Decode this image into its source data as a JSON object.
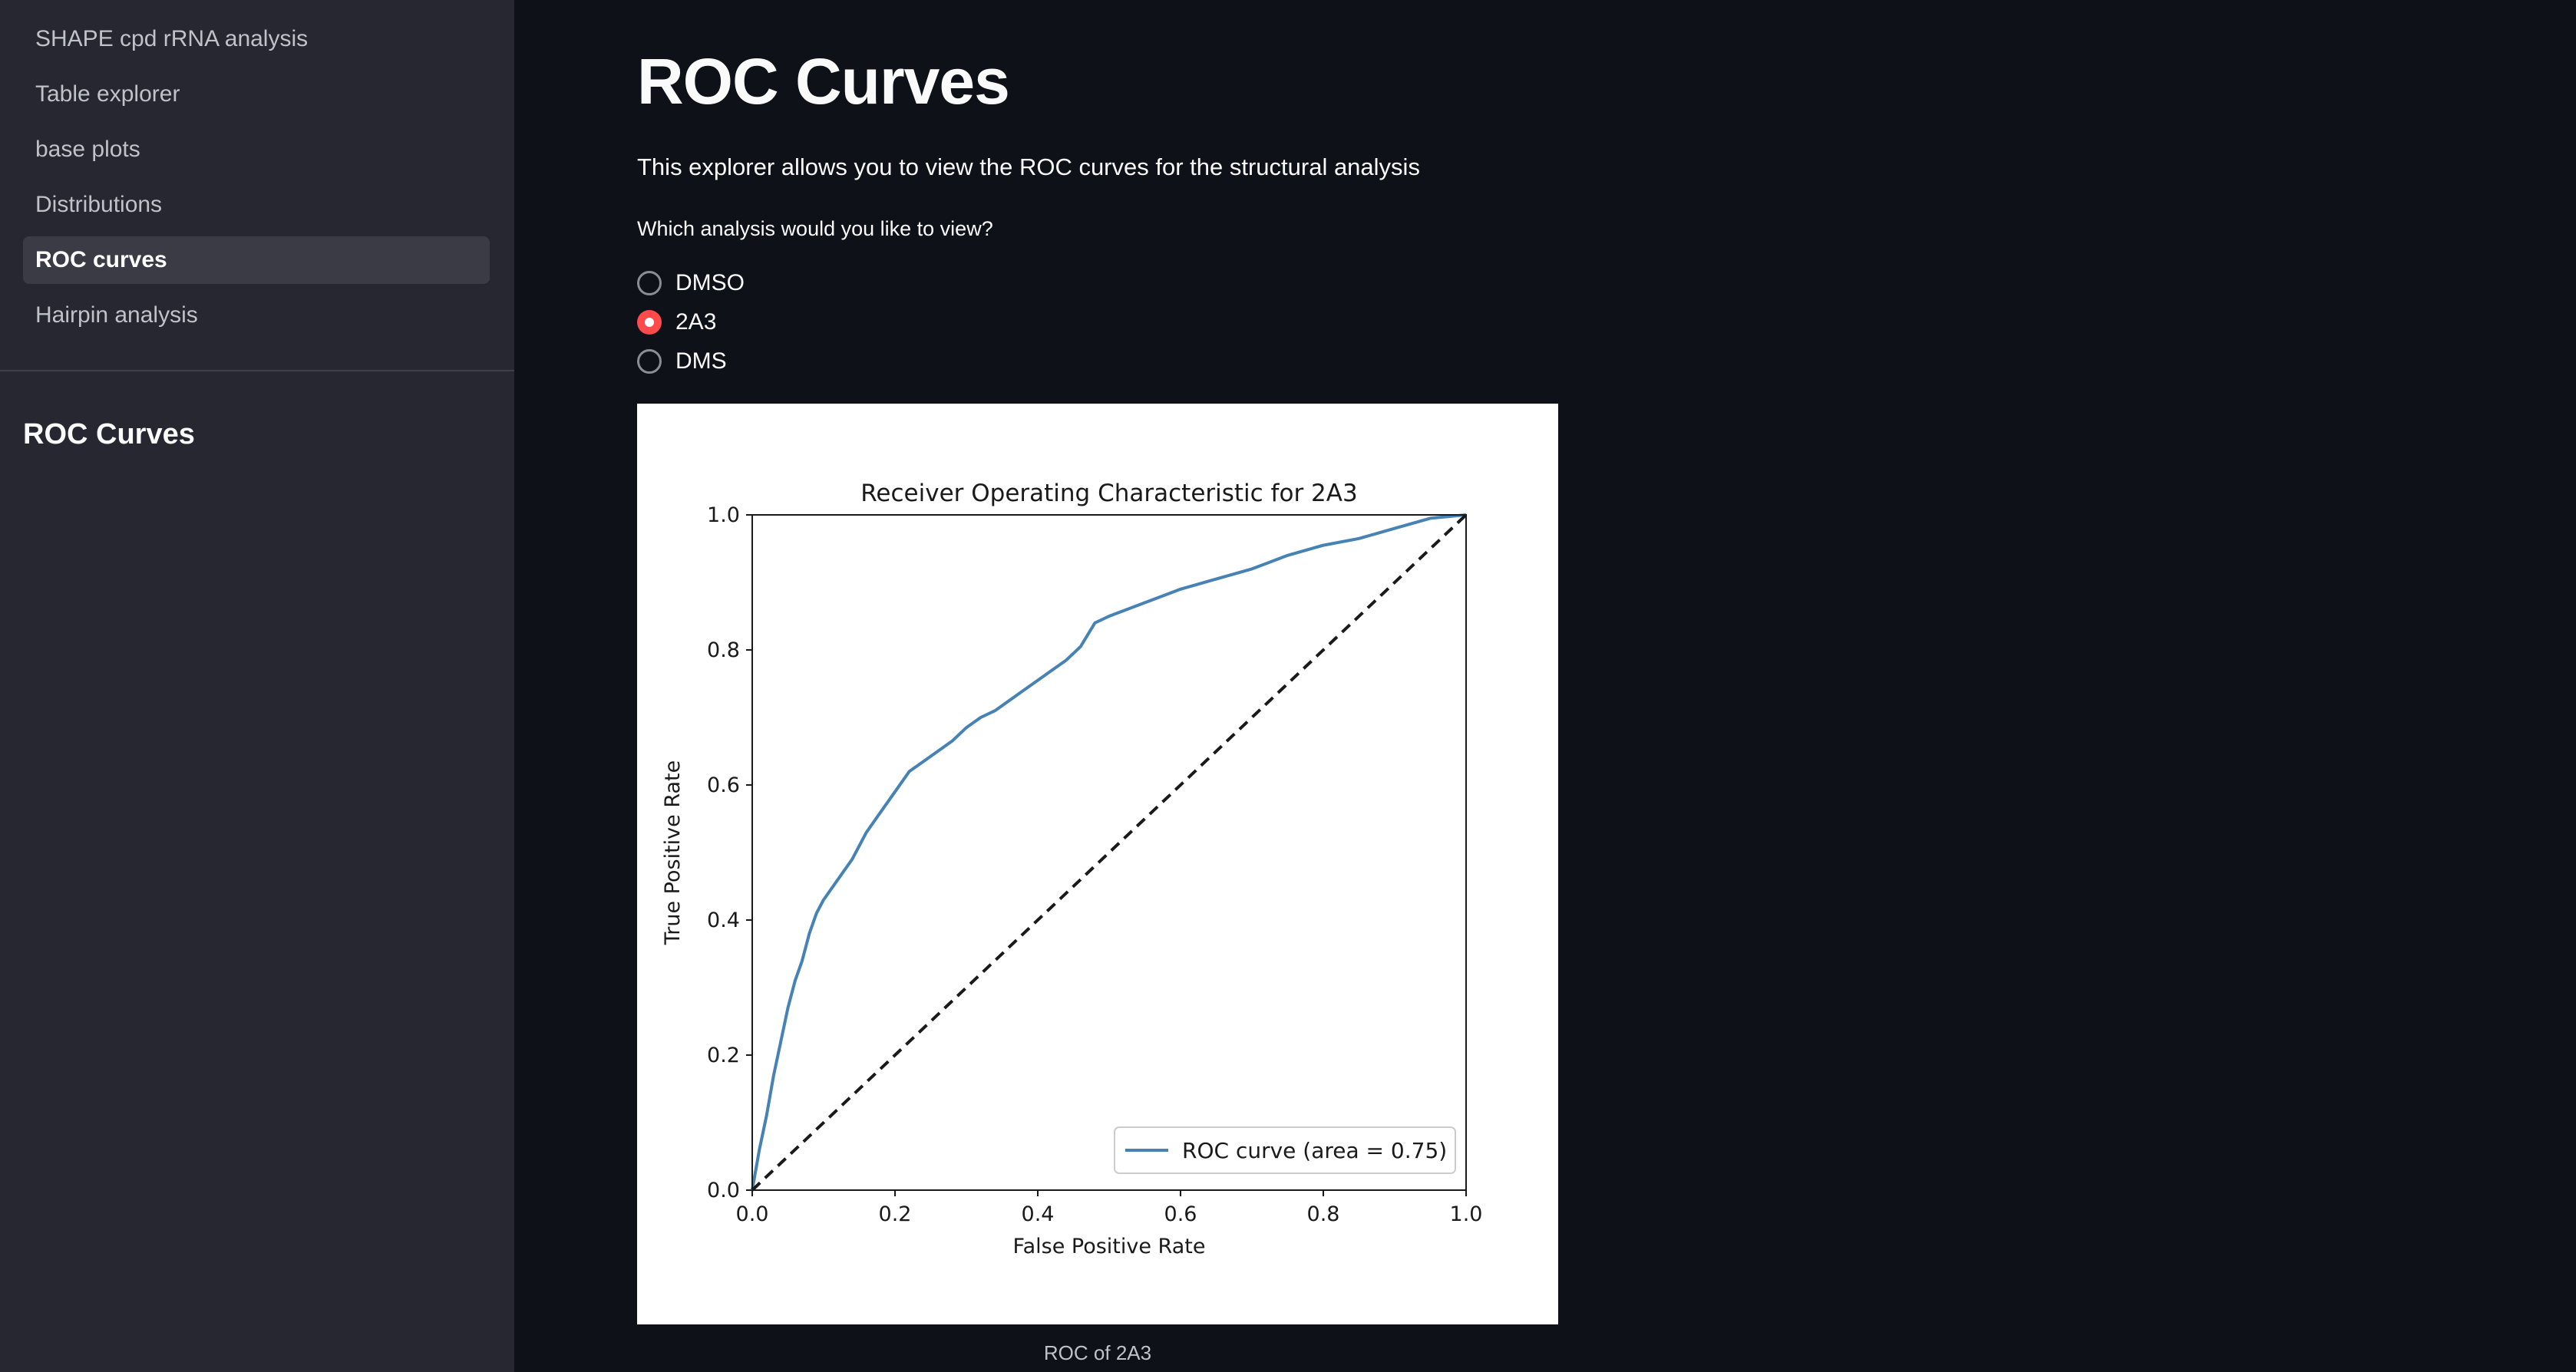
{
  "sidebar": {
    "items": [
      {
        "label": "SHAPE cpd rRNA analysis",
        "active": false
      },
      {
        "label": "Table explorer",
        "active": false
      },
      {
        "label": "base plots",
        "active": false
      },
      {
        "label": "Distributions",
        "active": false
      },
      {
        "label": "ROC curves",
        "active": true
      },
      {
        "label": "Hairpin analysis",
        "active": false
      }
    ],
    "section_heading": "ROC Curves"
  },
  "main": {
    "title": "ROC Curves",
    "intro": "This explorer allows you to view the ROC curves for the structural analysis",
    "radio": {
      "label": "Which analysis would you like to view?",
      "options": [
        "DMSO",
        "2A3",
        "DMS"
      ],
      "selected": "2A3"
    },
    "caption": "ROC of 2A3"
  },
  "colors": {
    "accent": "#ff4b4b",
    "curve": "#4682b4",
    "background": "#0e1117",
    "sidebar": "#262730"
  },
  "chart_data": {
    "type": "line",
    "title": "Receiver Operating Characteristic for 2A3",
    "xlabel": "False Positive Rate",
    "ylabel": "True Positive Rate",
    "xlim": [
      0.0,
      1.0
    ],
    "ylim": [
      0.0,
      1.0
    ],
    "xticks": [
      "0.0",
      "0.2",
      "0.4",
      "0.6",
      "0.8",
      "1.0"
    ],
    "yticks": [
      "0.0",
      "0.2",
      "0.4",
      "0.6",
      "0.8",
      "1.0"
    ],
    "legend_position": "lower-right",
    "grid": false,
    "series": [
      {
        "name": "ROC curve (area = 0.75)",
        "style": "solid",
        "x": [
          0.0,
          0.01,
          0.02,
          0.03,
          0.04,
          0.05,
          0.06,
          0.07,
          0.08,
          0.09,
          0.1,
          0.12,
          0.14,
          0.16,
          0.18,
          0.2,
          0.22,
          0.24,
          0.26,
          0.28,
          0.3,
          0.32,
          0.34,
          0.36,
          0.38,
          0.4,
          0.42,
          0.44,
          0.46,
          0.48,
          0.5,
          0.55,
          0.6,
          0.65,
          0.7,
          0.75,
          0.8,
          0.85,
          0.9,
          0.95,
          1.0
        ],
        "y": [
          0.0,
          0.06,
          0.11,
          0.17,
          0.22,
          0.27,
          0.31,
          0.34,
          0.38,
          0.41,
          0.43,
          0.46,
          0.49,
          0.53,
          0.56,
          0.59,
          0.62,
          0.635,
          0.65,
          0.665,
          0.685,
          0.7,
          0.71,
          0.725,
          0.74,
          0.755,
          0.77,
          0.785,
          0.805,
          0.84,
          0.85,
          0.87,
          0.89,
          0.905,
          0.92,
          0.94,
          0.955,
          0.965,
          0.98,
          0.995,
          1.0
        ]
      },
      {
        "name": "",
        "style": "dashed",
        "x": [
          0.0,
          1.0
        ],
        "y": [
          0.0,
          1.0
        ]
      }
    ]
  }
}
